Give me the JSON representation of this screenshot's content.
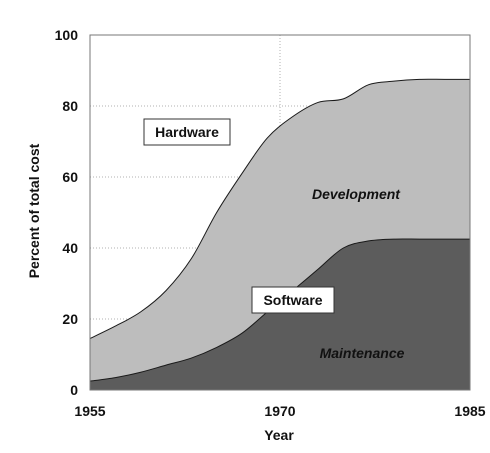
{
  "chart_data": {
    "type": "area",
    "title": "",
    "xlabel": "Year",
    "ylabel": "Percent of total cost",
    "xlim": [
      1955,
      1985
    ],
    "ylim": [
      0,
      100
    ],
    "x_ticks": [
      1955,
      1970,
      1985
    ],
    "y_ticks": [
      0,
      20,
      40,
      60,
      80,
      100
    ],
    "grid": true,
    "stacked": true,
    "x": [
      1955,
      1957,
      1959,
      1961,
      1963,
      1965,
      1967,
      1969,
      1971,
      1973,
      1975,
      1977,
      1979,
      1981,
      1983,
      1985
    ],
    "series": [
      {
        "name": "Maintenance",
        "values": [
          2.5,
          3.5,
          5,
          7,
          9,
          12,
          16,
          22,
          28,
          34,
          40,
          42,
          42.5,
          42.5,
          42.5,
          42.5
        ],
        "color": "#5c5c5c"
      },
      {
        "name": "Development",
        "values": [
          12,
          14.5,
          17,
          21,
          28,
          38,
          45,
          49,
          49,
          47,
          42,
          44,
          44.5,
          45,
          45,
          45
        ],
        "color": "#bdbdbd"
      },
      {
        "name": "Hardware",
        "values": [
          85.5,
          82,
          78,
          72,
          63,
          50,
          39,
          29,
          23,
          19,
          18,
          14,
          13,
          12.5,
          12.5,
          12.5
        ],
        "color": "#ffffff"
      }
    ],
    "annotations": {
      "hardware": "Hardware",
      "software": "Software",
      "development": "Development",
      "maintenance": "Maintenance"
    }
  }
}
